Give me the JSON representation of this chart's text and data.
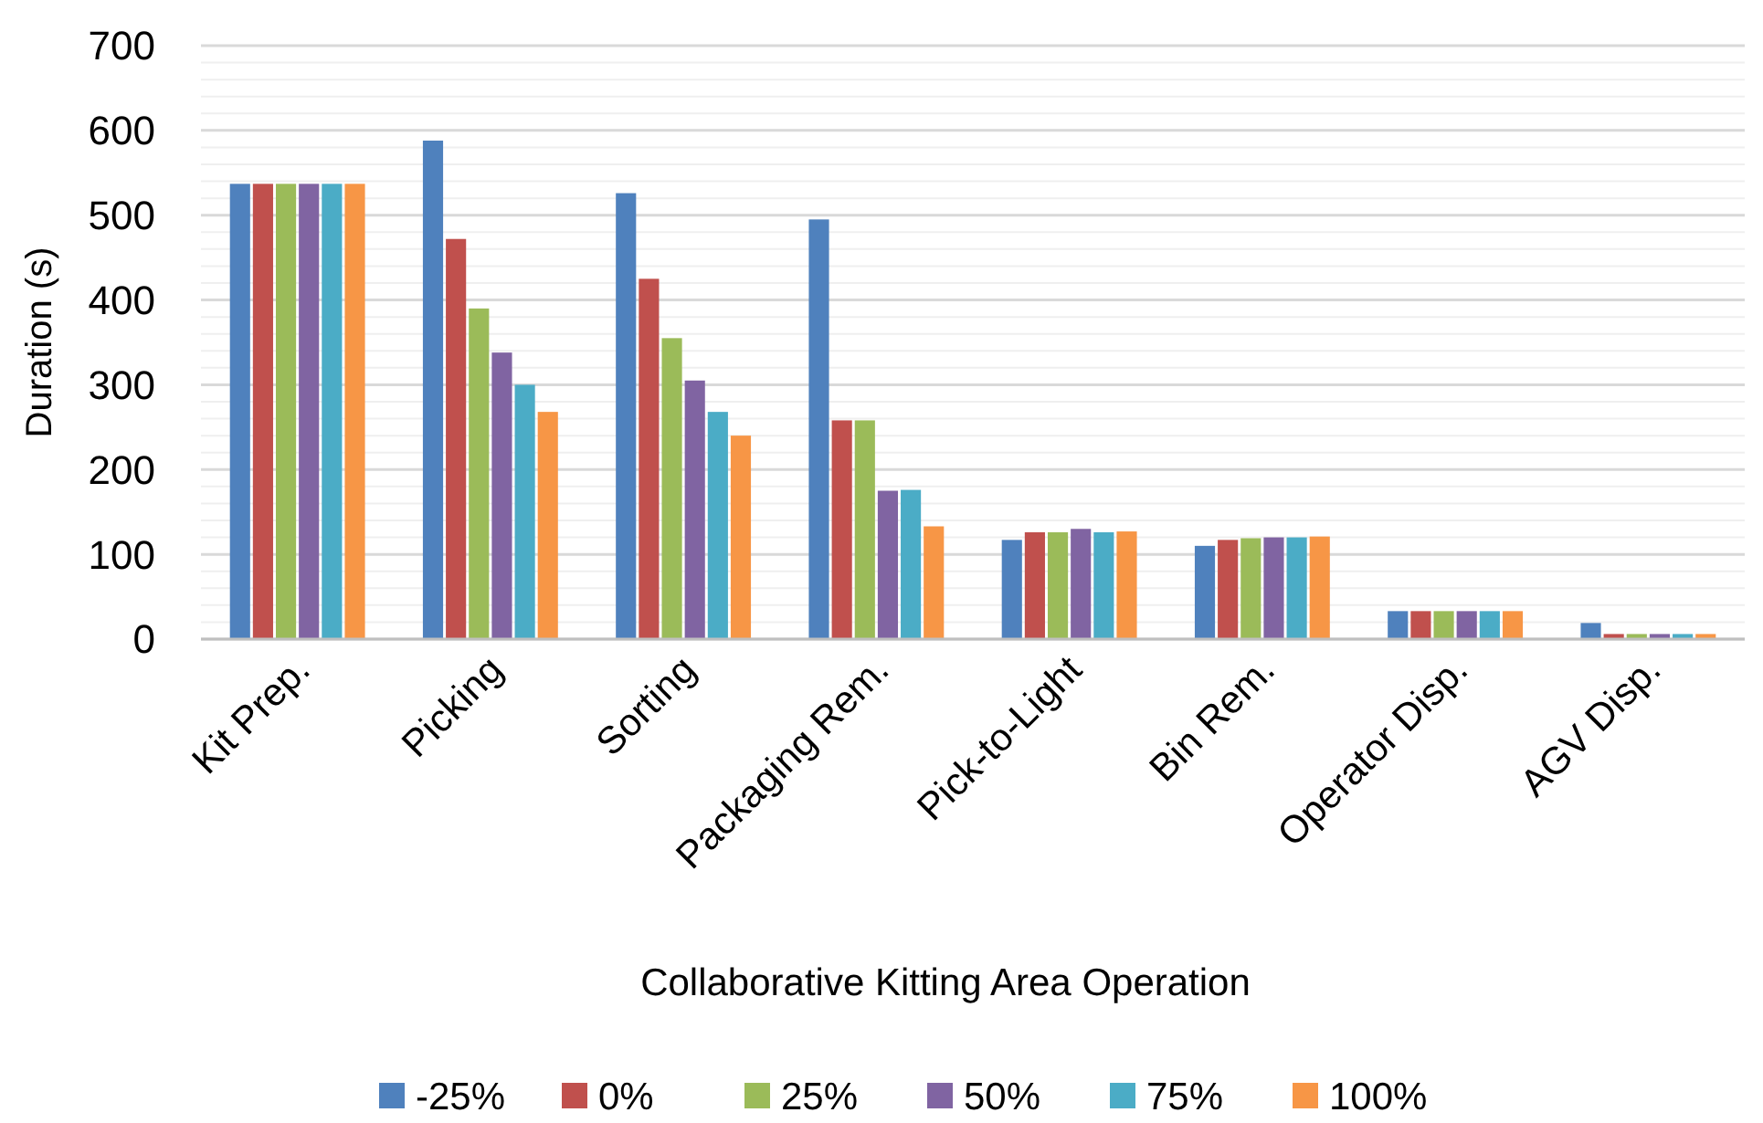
{
  "chart_data": {
    "type": "bar",
    "xlabel": "Collaborative Kitting Area Operation",
    "ylabel": "Duration (s)",
    "categories": [
      "Kit Prep.",
      "Picking",
      "Sorting",
      "Packaging Rem.",
      "Pick-to-Light",
      "Bin Rem.",
      "Operator Disp.",
      "AGV Disp."
    ],
    "series": [
      {
        "name": "-25%",
        "color": "#4f81bd",
        "values": [
          537,
          588,
          526,
          495,
          117,
          110,
          33,
          19
        ]
      },
      {
        "name": "0%",
        "color": "#c0504d",
        "values": [
          537,
          472,
          425,
          258,
          126,
          117,
          33,
          6
        ]
      },
      {
        "name": "25%",
        "color": "#9bbb59",
        "values": [
          537,
          390,
          355,
          258,
          126,
          119,
          33,
          6
        ]
      },
      {
        "name": "50%",
        "color": "#8064a2",
        "values": [
          537,
          338,
          305,
          175,
          130,
          120,
          33,
          6
        ]
      },
      {
        "name": "75%",
        "color": "#4bacc6",
        "values": [
          537,
          300,
          268,
          176,
          126,
          120,
          33,
          6
        ]
      },
      {
        "name": "100%",
        "color": "#f79646",
        "values": [
          537,
          268,
          240,
          133,
          127,
          121,
          33,
          6
        ]
      }
    ],
    "ylim": [
      0,
      700
    ],
    "yticks": [
      0,
      {
        "value": 20,
        "label": null
      },
      {
        "value": 40,
        "label": null
      },
      {
        "value": 60,
        "label": null
      },
      {
        "value": 80,
        "label": null
      },
      100,
      {
        "value": 120,
        "label": null
      },
      {
        "value": 140,
        "label": null
      },
      {
        "value": 160,
        "label": null
      },
      {
        "value": 180,
        "label": null
      },
      200,
      {
        "value": 220,
        "label": null
      },
      {
        "value": 240,
        "label": null
      },
      {
        "value": 260,
        "label": null
      },
      {
        "value": 280,
        "label": null
      },
      300,
      {
        "value": 320,
        "label": null
      },
      {
        "value": 340,
        "label": null
      },
      {
        "value": 360,
        "label": null
      },
      {
        "value": 380,
        "label": null
      },
      400,
      {
        "value": 420,
        "label": null
      },
      {
        "value": 440,
        "label": null
      },
      {
        "value": 460,
        "label": null
      },
      {
        "value": 480,
        "label": null
      },
      500,
      {
        "value": 520,
        "label": null
      },
      {
        "value": 540,
        "label": null
      },
      {
        "value": 560,
        "label": null
      },
      {
        "value": 580,
        "label": null
      },
      600,
      {
        "value": 620,
        "label": null
      },
      {
        "value": 640,
        "label": null
      },
      {
        "value": 660,
        "label": null
      },
      {
        "value": 680,
        "label": null
      },
      700
    ],
    "grid": true,
    "legend": "bottom"
  }
}
